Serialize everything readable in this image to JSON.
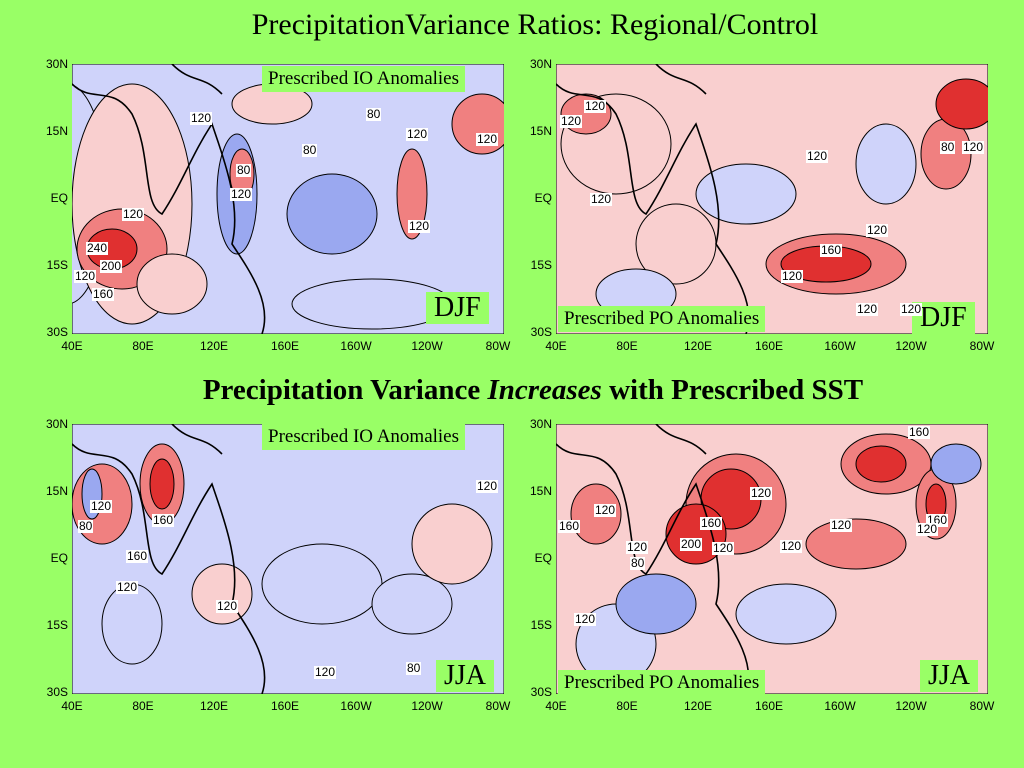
{
  "title": "PrecipitationVariance Ratios: Regional/Control",
  "subtitle": {
    "prefix": "Precipitation Variance ",
    "emphasis": "Increases",
    "suffix": " with Prescribed SST"
  },
  "lat_labels": [
    "30N",
    "15N",
    "EQ",
    "15S",
    "30S"
  ],
  "lon_labels": [
    "40E",
    "80E",
    "120E",
    "160E",
    "160W",
    "120W",
    "80W"
  ],
  "colors": {
    "background": "#99ff66",
    "increase": "#f08080",
    "strong_increase": "#e03030",
    "decrease": "#9aa8f0",
    "neutral_pink": "#f9cfcf",
    "neutral_blue": "#cfd3fa"
  },
  "panels": [
    {
      "id": "io-djf",
      "source": "Prescribed IO Anomalies",
      "season": "DJF",
      "contour_labels": [
        "120",
        "80",
        "80",
        "120",
        "120",
        "80",
        "120",
        "120",
        "120",
        "240",
        "200",
        "120",
        "160"
      ]
    },
    {
      "id": "po-djf",
      "source": "Prescribed PO Anomalies",
      "season": "DJF",
      "contour_labels": [
        "120",
        "120",
        "120",
        "120",
        "120",
        "80",
        "120",
        "120",
        "160",
        "120",
        "120"
      ]
    },
    {
      "id": "io-jja",
      "source": "Prescribed IO Anomalies",
      "season": "JJA",
      "contour_labels": [
        "120",
        "120",
        "80",
        "160",
        "160",
        "120",
        "120",
        "120",
        "80"
      ]
    },
    {
      "id": "po-jja",
      "source": "Prescribed PO Anomalies",
      "season": "JJA",
      "contour_labels": [
        "120",
        "160",
        "120",
        "120",
        "160",
        "160",
        "200",
        "120",
        "120",
        "80",
        "120",
        "160",
        "120",
        "120"
      ]
    }
  ]
}
